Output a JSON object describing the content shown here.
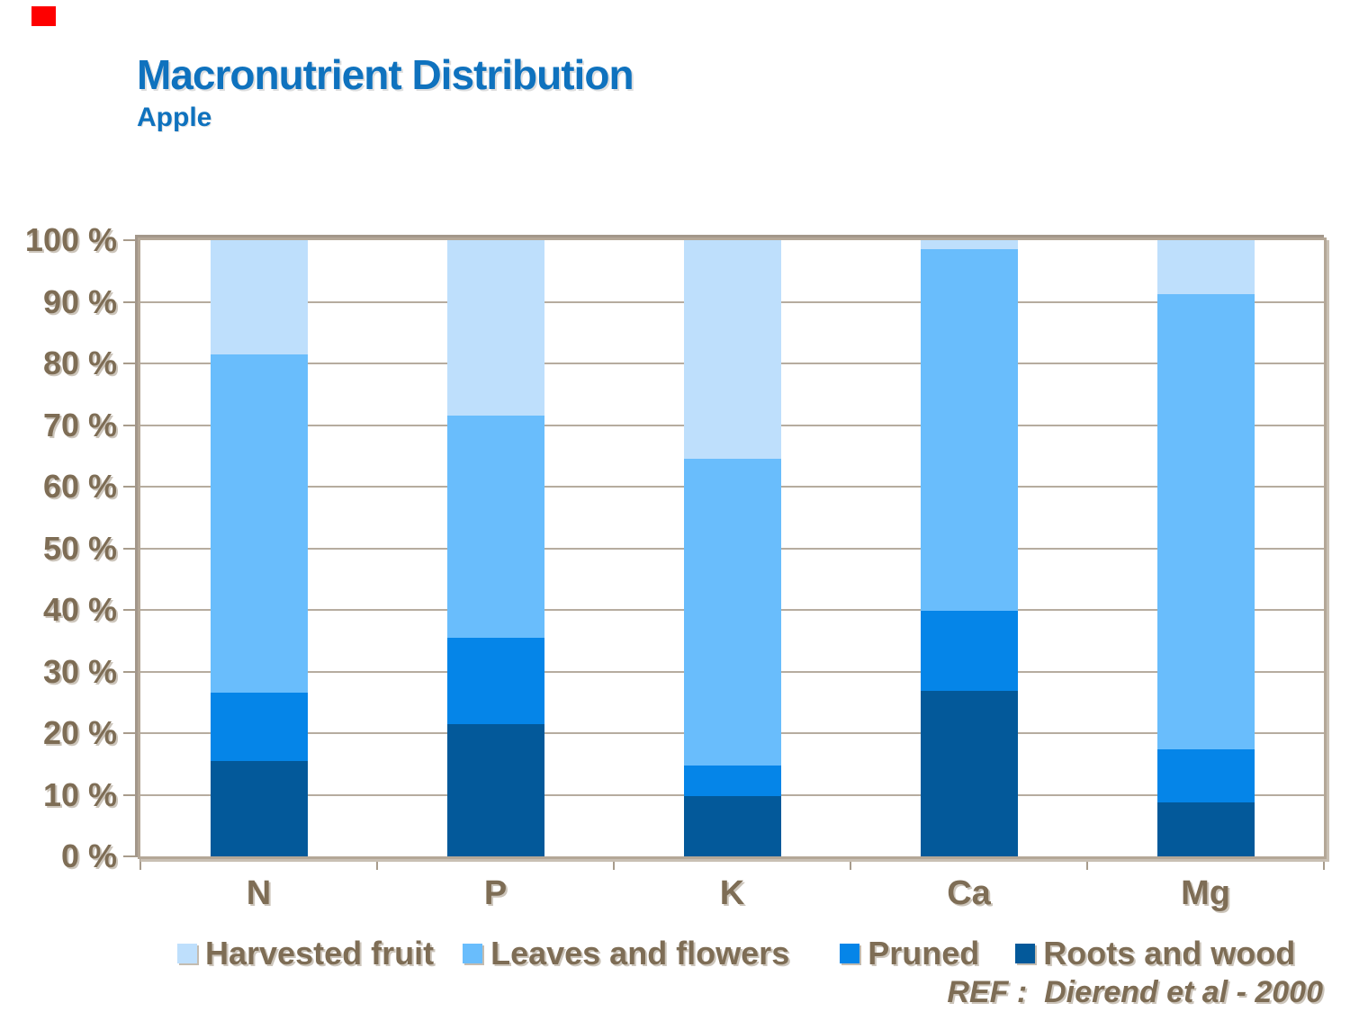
{
  "decorations": {
    "red_marker_color": "#FE0000"
  },
  "header": {
    "title": "Macronutrient Distribution",
    "subtitle": "Apple"
  },
  "chart_data": {
    "type": "bar",
    "stacked": true,
    "title": "Macronutrient Distribution",
    "subtitle": "Apple",
    "categories": [
      "N",
      "P",
      "K",
      "Ca",
      "Mg"
    ],
    "series": [
      {
        "name": "Roots and wood",
        "color": "#03599A",
        "values": [
          15.5,
          21.5,
          9.8,
          26.9,
          8.8
        ]
      },
      {
        "name": "Pruned",
        "color": "#0585E8",
        "values": [
          11.0,
          14.0,
          5.0,
          12.9,
          8.6
        ]
      },
      {
        "name": "Leaves and flowers",
        "color": "#69BDFC",
        "values": [
          55.0,
          36.0,
          49.7,
          58.8,
          73.8
        ]
      },
      {
        "name": "Harvested fruit",
        "color": "#BEDFFC",
        "values": [
          18.5,
          28.5,
          35.5,
          1.4,
          8.8
        ]
      }
    ],
    "y_ticks": [
      "100 %",
      "90 %",
      "80 %",
      "70 %",
      "60 %",
      "50 %",
      "40 %",
      "30 %",
      "20 %",
      "10 %",
      "0 %"
    ],
    "ylim": [
      0,
      100
    ],
    "grid": true,
    "legend_position": "bottom",
    "legend_labels": [
      "Harvested fruit",
      "Leaves and flowers",
      "Pruned",
      "Roots and wood"
    ]
  },
  "footer": {
    "reference": "REF :  Dierend et al - 2000"
  },
  "theme": {
    "title_color": "#0F72BE",
    "axis_text_color": "#7E6D55",
    "frame_color": "#B4A797",
    "gridline_color": "#B6AC9F"
  }
}
